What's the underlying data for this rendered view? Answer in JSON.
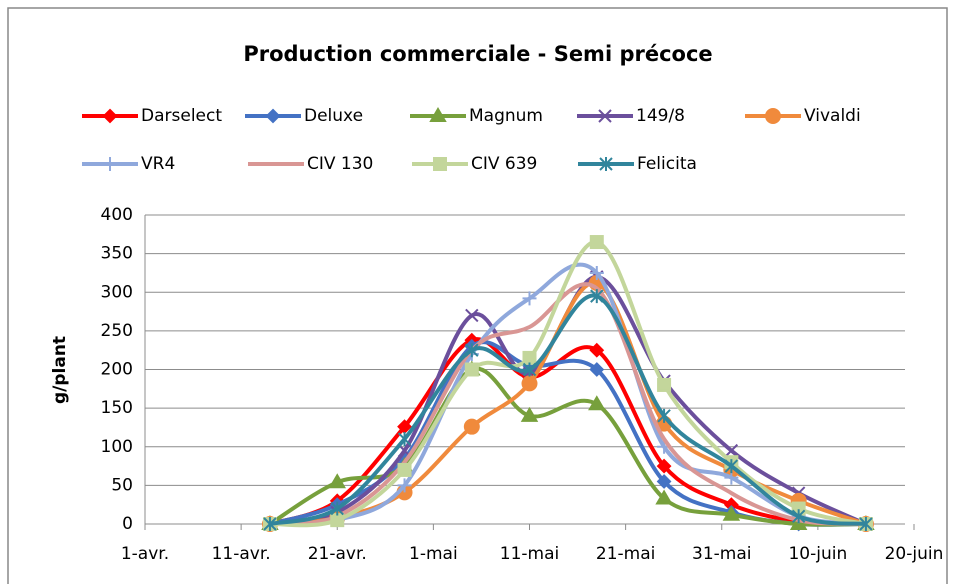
{
  "chart_data": {
    "type": "line",
    "title": "Production commerciale - Semi précoce",
    "y_label": "g/plant",
    "x": [
      13,
      20,
      27,
      34,
      40,
      47,
      54,
      61,
      68,
      75
    ],
    "xlim": [
      0,
      80
    ],
    "xticks": [
      {
        "value": 0,
        "label": "1-avr."
      },
      {
        "value": 10,
        "label": "11-avr."
      },
      {
        "value": 20,
        "label": "21-avr."
      },
      {
        "value": 30,
        "label": "1-mai"
      },
      {
        "value": 40,
        "label": "11-mai"
      },
      {
        "value": 50,
        "label": "21-mai"
      },
      {
        "value": 60,
        "label": "31-mai"
      },
      {
        "value": 70,
        "label": "10-juin"
      },
      {
        "value": 80,
        "label": "20-juin"
      }
    ],
    "ylim": [
      0,
      400
    ],
    "yticks": [
      0,
      50,
      100,
      150,
      200,
      250,
      300,
      350,
      400
    ],
    "grid": true,
    "smooth": true,
    "series": [
      {
        "name": "Darselect",
        "color": "#ff0000",
        "marker": "diamond",
        "values": [
          0,
          30,
          126,
          238,
          190,
          225,
          75,
          25,
          3,
          0
        ]
      },
      {
        "name": "Deluxe",
        "color": "#4472c4",
        "marker": "diamond",
        "values": [
          0,
          25,
          85,
          230,
          205,
          200,
          55,
          15,
          0,
          0
        ]
      },
      {
        "name": "Magnum",
        "color": "#77a03c",
        "marker": "triangle",
        "values": [
          0,
          54,
          75,
          200,
          140,
          155,
          33,
          12,
          0,
          0
        ]
      },
      {
        "name": "149/8",
        "color": "#6b4f9c",
        "marker": "x",
        "values": [
          0,
          15,
          95,
          270,
          195,
          320,
          185,
          95,
          40,
          0
        ]
      },
      {
        "name": "Vivaldi",
        "color": "#f08a3c",
        "marker": "circle",
        "values": [
          0,
          8,
          41,
          126,
          182,
          312,
          130,
          70,
          30,
          0
        ]
      },
      {
        "name": "VR4",
        "color": "#8fa8dc",
        "marker": "plus",
        "values": [
          0,
          5,
          50,
          220,
          292,
          325,
          100,
          60,
          10,
          0
        ]
      },
      {
        "name": "CIV 130",
        "color": "#d99694",
        "marker": "none",
        "values": [
          0,
          10,
          80,
          225,
          255,
          305,
          110,
          40,
          5,
          0
        ]
      },
      {
        "name": "CIV 639",
        "color": "#c3d69b",
        "marker": "square",
        "values": [
          0,
          5,
          70,
          200,
          215,
          365,
          180,
          80,
          20,
          0
        ]
      },
      {
        "name": "Felicita",
        "color": "#31859c",
        "marker": "star",
        "values": [
          0,
          20,
          110,
          225,
          200,
          295,
          140,
          75,
          10,
          0
        ]
      }
    ]
  }
}
